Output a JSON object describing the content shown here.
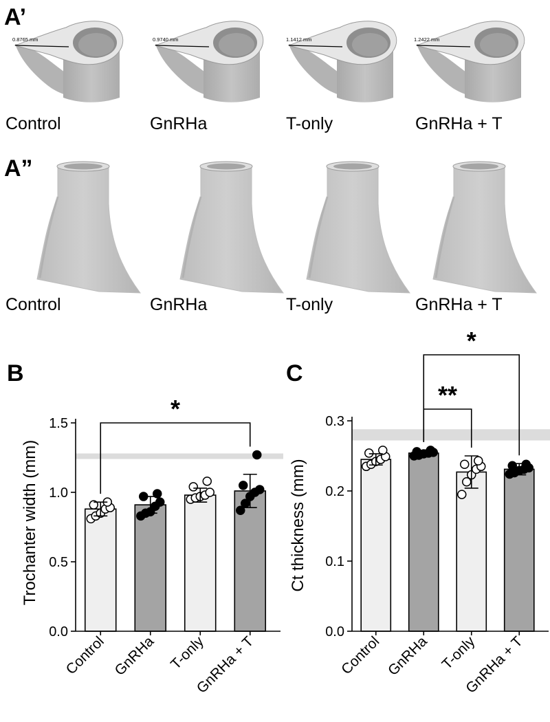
{
  "panels": {
    "a_prime": {
      "label": "A’",
      "groups": [
        "Control",
        "GnRHa",
        "T-only",
        "GnRHa + T"
      ],
      "measurements": [
        "0.8765 mm",
        "0.9740 mm",
        "1.1412 mm",
        "1.2422 mm"
      ]
    },
    "a_double_prime": {
      "label": "A”",
      "groups": [
        "Control",
        "GnRHa",
        "T-only",
        "GnRHa + T"
      ]
    }
  },
  "colors": {
    "bar_light": "#efefef",
    "bar_dark": "#a4a4a4",
    "reference_band": "#dcdcdc",
    "bone_surface": "#b9b9b9",
    "bone_cut_face": "#e6e6e6"
  },
  "chart_data": [
    {
      "panel_label": "B",
      "type": "bar",
      "categories": [
        "Control",
        "GnRHa",
        "T-only",
        "GnRHa + T"
      ],
      "values": [
        0.88,
        0.91,
        0.98,
        1.01
      ],
      "error": [
        0.05,
        0.06,
        0.05,
        0.12
      ],
      "bar_fill": [
        "light",
        "dark",
        "light",
        "dark"
      ],
      "points": [
        [
          0.81,
          0.83,
          0.85,
          0.88,
          0.89,
          0.91,
          0.93
        ],
        [
          0.83,
          0.85,
          0.86,
          0.9,
          0.93,
          0.97,
          0.99
        ],
        [
          0.95,
          0.96,
          0.97,
          0.98,
          1.0,
          1.04,
          1.08
        ],
        [
          0.87,
          0.92,
          0.97,
          1.0,
          1.02,
          1.05,
          1.27
        ]
      ],
      "point_fill": [
        "open",
        "filled",
        "open",
        "filled"
      ],
      "reference_band": [
        1.24,
        1.28
      ],
      "significance": [
        {
          "from": "Control",
          "to": "GnRHa + T",
          "label": "*"
        }
      ],
      "xlabel": "",
      "ylabel": "Trochanter width (mm)",
      "ylim": [
        0,
        1.5
      ],
      "yticks": [
        "0.0",
        "0.5",
        "1.0",
        "1.5"
      ],
      "grid": false
    },
    {
      "panel_label": "C",
      "type": "bar",
      "categories": [
        "Control",
        "GnRHa",
        "T-only",
        "GnRHa + T"
      ],
      "values": [
        0.245,
        0.254,
        0.227,
        0.231
      ],
      "error": [
        0.008,
        0.004,
        0.023,
        0.008
      ],
      "bar_fill": [
        "light",
        "dark",
        "light",
        "dark"
      ],
      "points": [
        [
          0.235,
          0.238,
          0.242,
          0.245,
          0.249,
          0.254,
          0.258
        ],
        [
          0.25,
          0.251,
          0.253,
          0.254,
          0.255,
          0.256,
          0.258
        ],
        [
          0.195,
          0.213,
          0.223,
          0.231,
          0.235,
          0.238,
          0.243
        ],
        [
          0.224,
          0.226,
          0.229,
          0.231,
          0.233,
          0.236,
          0.238
        ]
      ],
      "point_fill": [
        "open",
        "filled",
        "open",
        "filled"
      ],
      "reference_band": [
        0.272,
        0.288
      ],
      "significance": [
        {
          "from": "GnRHa",
          "to": "T-only",
          "label": "**"
        },
        {
          "from": "GnRHa",
          "to": "GnRHa + T",
          "label": "*"
        }
      ],
      "xlabel": "",
      "ylabel": "Ct thickness (mm)",
      "ylim": [
        0,
        0.3
      ],
      "yticks": [
        "0.0",
        "0.1",
        "0.2",
        "0.3"
      ],
      "grid": false
    }
  ]
}
